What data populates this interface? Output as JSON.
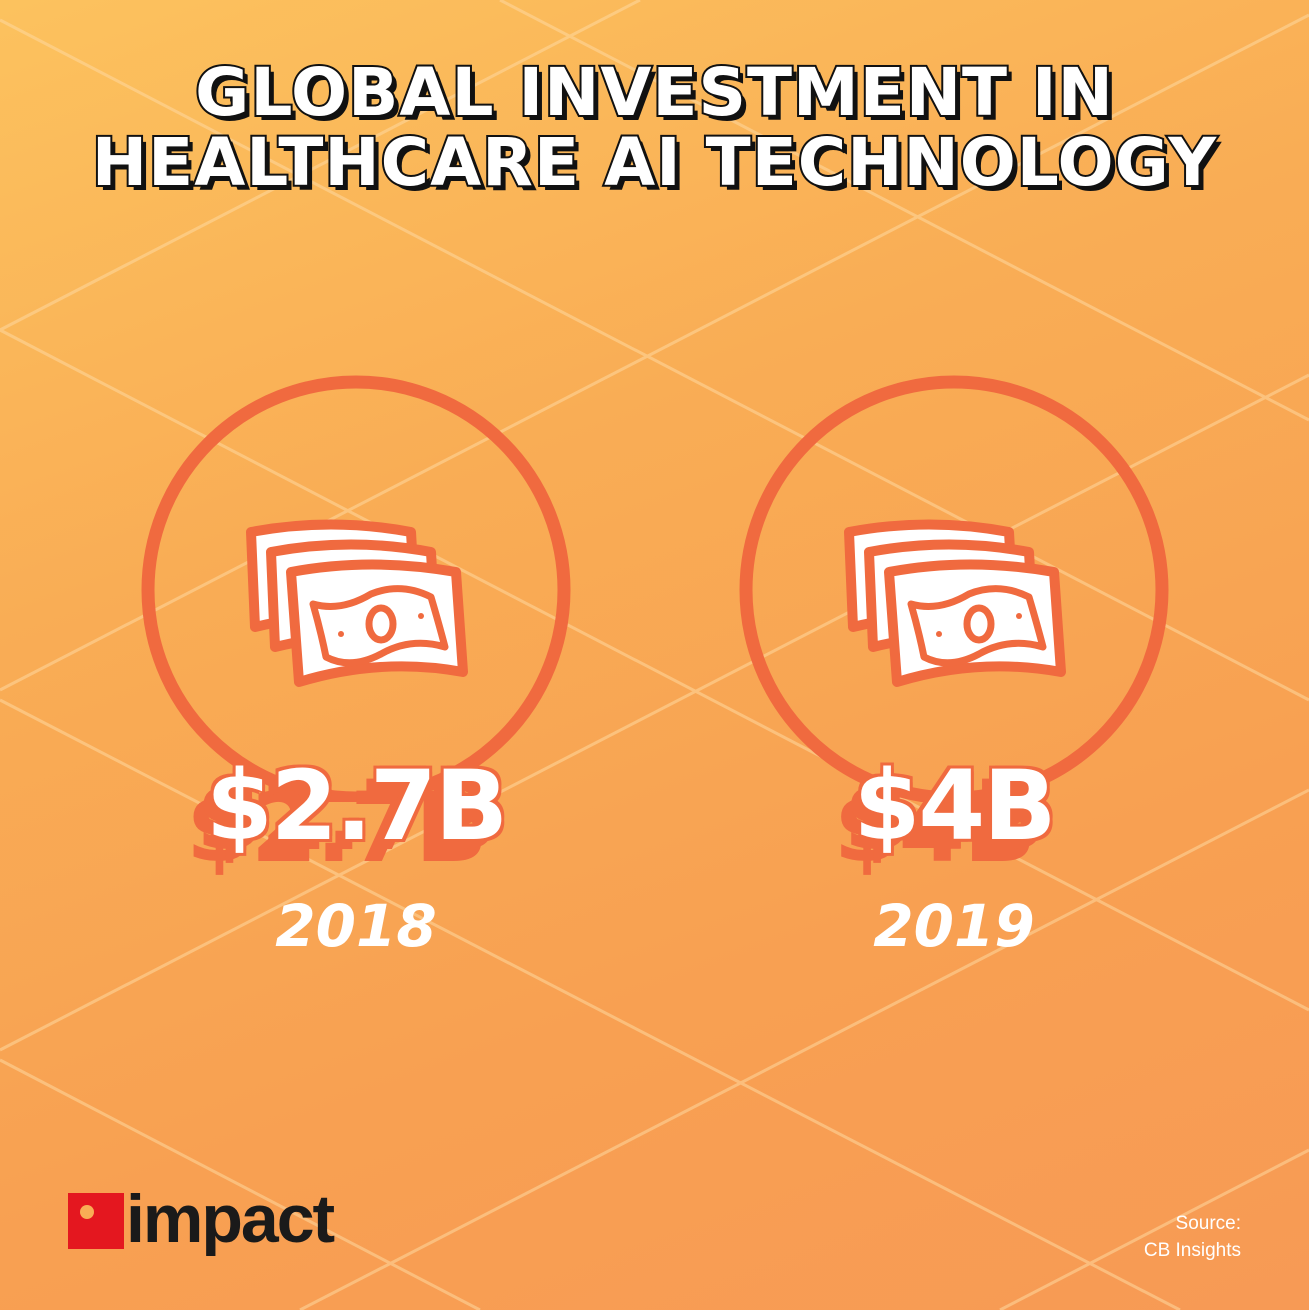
{
  "title": {
    "line1": "GLOBAL INVESTMENT IN",
    "line2": "HEALTHCARE AI TECHNOLOGY"
  },
  "stats": [
    {
      "value": "$2.7B",
      "year": "2018",
      "icon": "money-stack-icon"
    },
    {
      "value": "$4B",
      "year": "2019",
      "icon": "money-stack-icon"
    }
  ],
  "logo": {
    "text": "impact"
  },
  "source": {
    "label": "Source:",
    "name": "CB Insights"
  },
  "colors": {
    "background": "#f9ad55",
    "accent": "#f06a3f",
    "logo_red": "#e4171f",
    "title_outline": "#111111"
  }
}
